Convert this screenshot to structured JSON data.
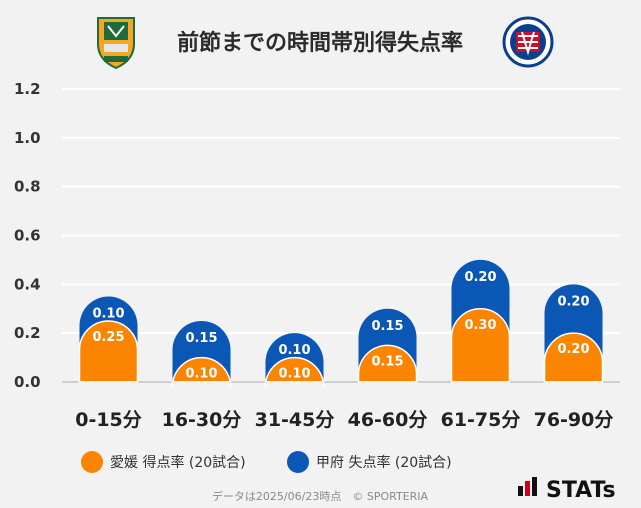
{
  "title": "前節までの時間帯別得失点率",
  "footer_note": "データは2025/06/23時点　© SPORTERIA",
  "brand": "STATs",
  "logos": {
    "left": "ehime-fc-crest",
    "right": "ventforet-kofu-crest"
  },
  "colors": {
    "ehime": "#fb8500",
    "kofu": "#0a57b5",
    "background": "#f2f2f2"
  },
  "chart_data": {
    "type": "bar",
    "stacked": true,
    "title": "前節までの時間帯別得失点率",
    "categories": [
      "0-15分",
      "16-30分",
      "31-45分",
      "46-60分",
      "61-75分",
      "76-90分"
    ],
    "series": [
      {
        "name": "愛媛 得点率 (20試合)",
        "color": "#fb8500",
        "values": [
          0.25,
          0.1,
          0.1,
          0.15,
          0.3,
          0.2
        ],
        "labels": [
          "0.25",
          "0.10",
          "0.10",
          "0.15",
          "0.30",
          "0.20"
        ]
      },
      {
        "name": "甲府 失点率 (20試合)",
        "color": "#0a57b5",
        "values": [
          0.1,
          0.15,
          0.1,
          0.15,
          0.2,
          0.2
        ],
        "labels": [
          "0.10",
          "0.15",
          "0.10",
          "0.15",
          "0.20",
          "0.20"
        ]
      }
    ],
    "ylim": [
      0,
      1.2
    ],
    "yticks": [
      0.0,
      0.2,
      0.4,
      0.6,
      0.8,
      1.0,
      1.2
    ],
    "ytick_labels": [
      "0.0",
      "0.2",
      "0.4",
      "0.6",
      "0.8",
      "1.0",
      "1.2"
    ],
    "grid": true,
    "legend_position": "bottom-left"
  }
}
